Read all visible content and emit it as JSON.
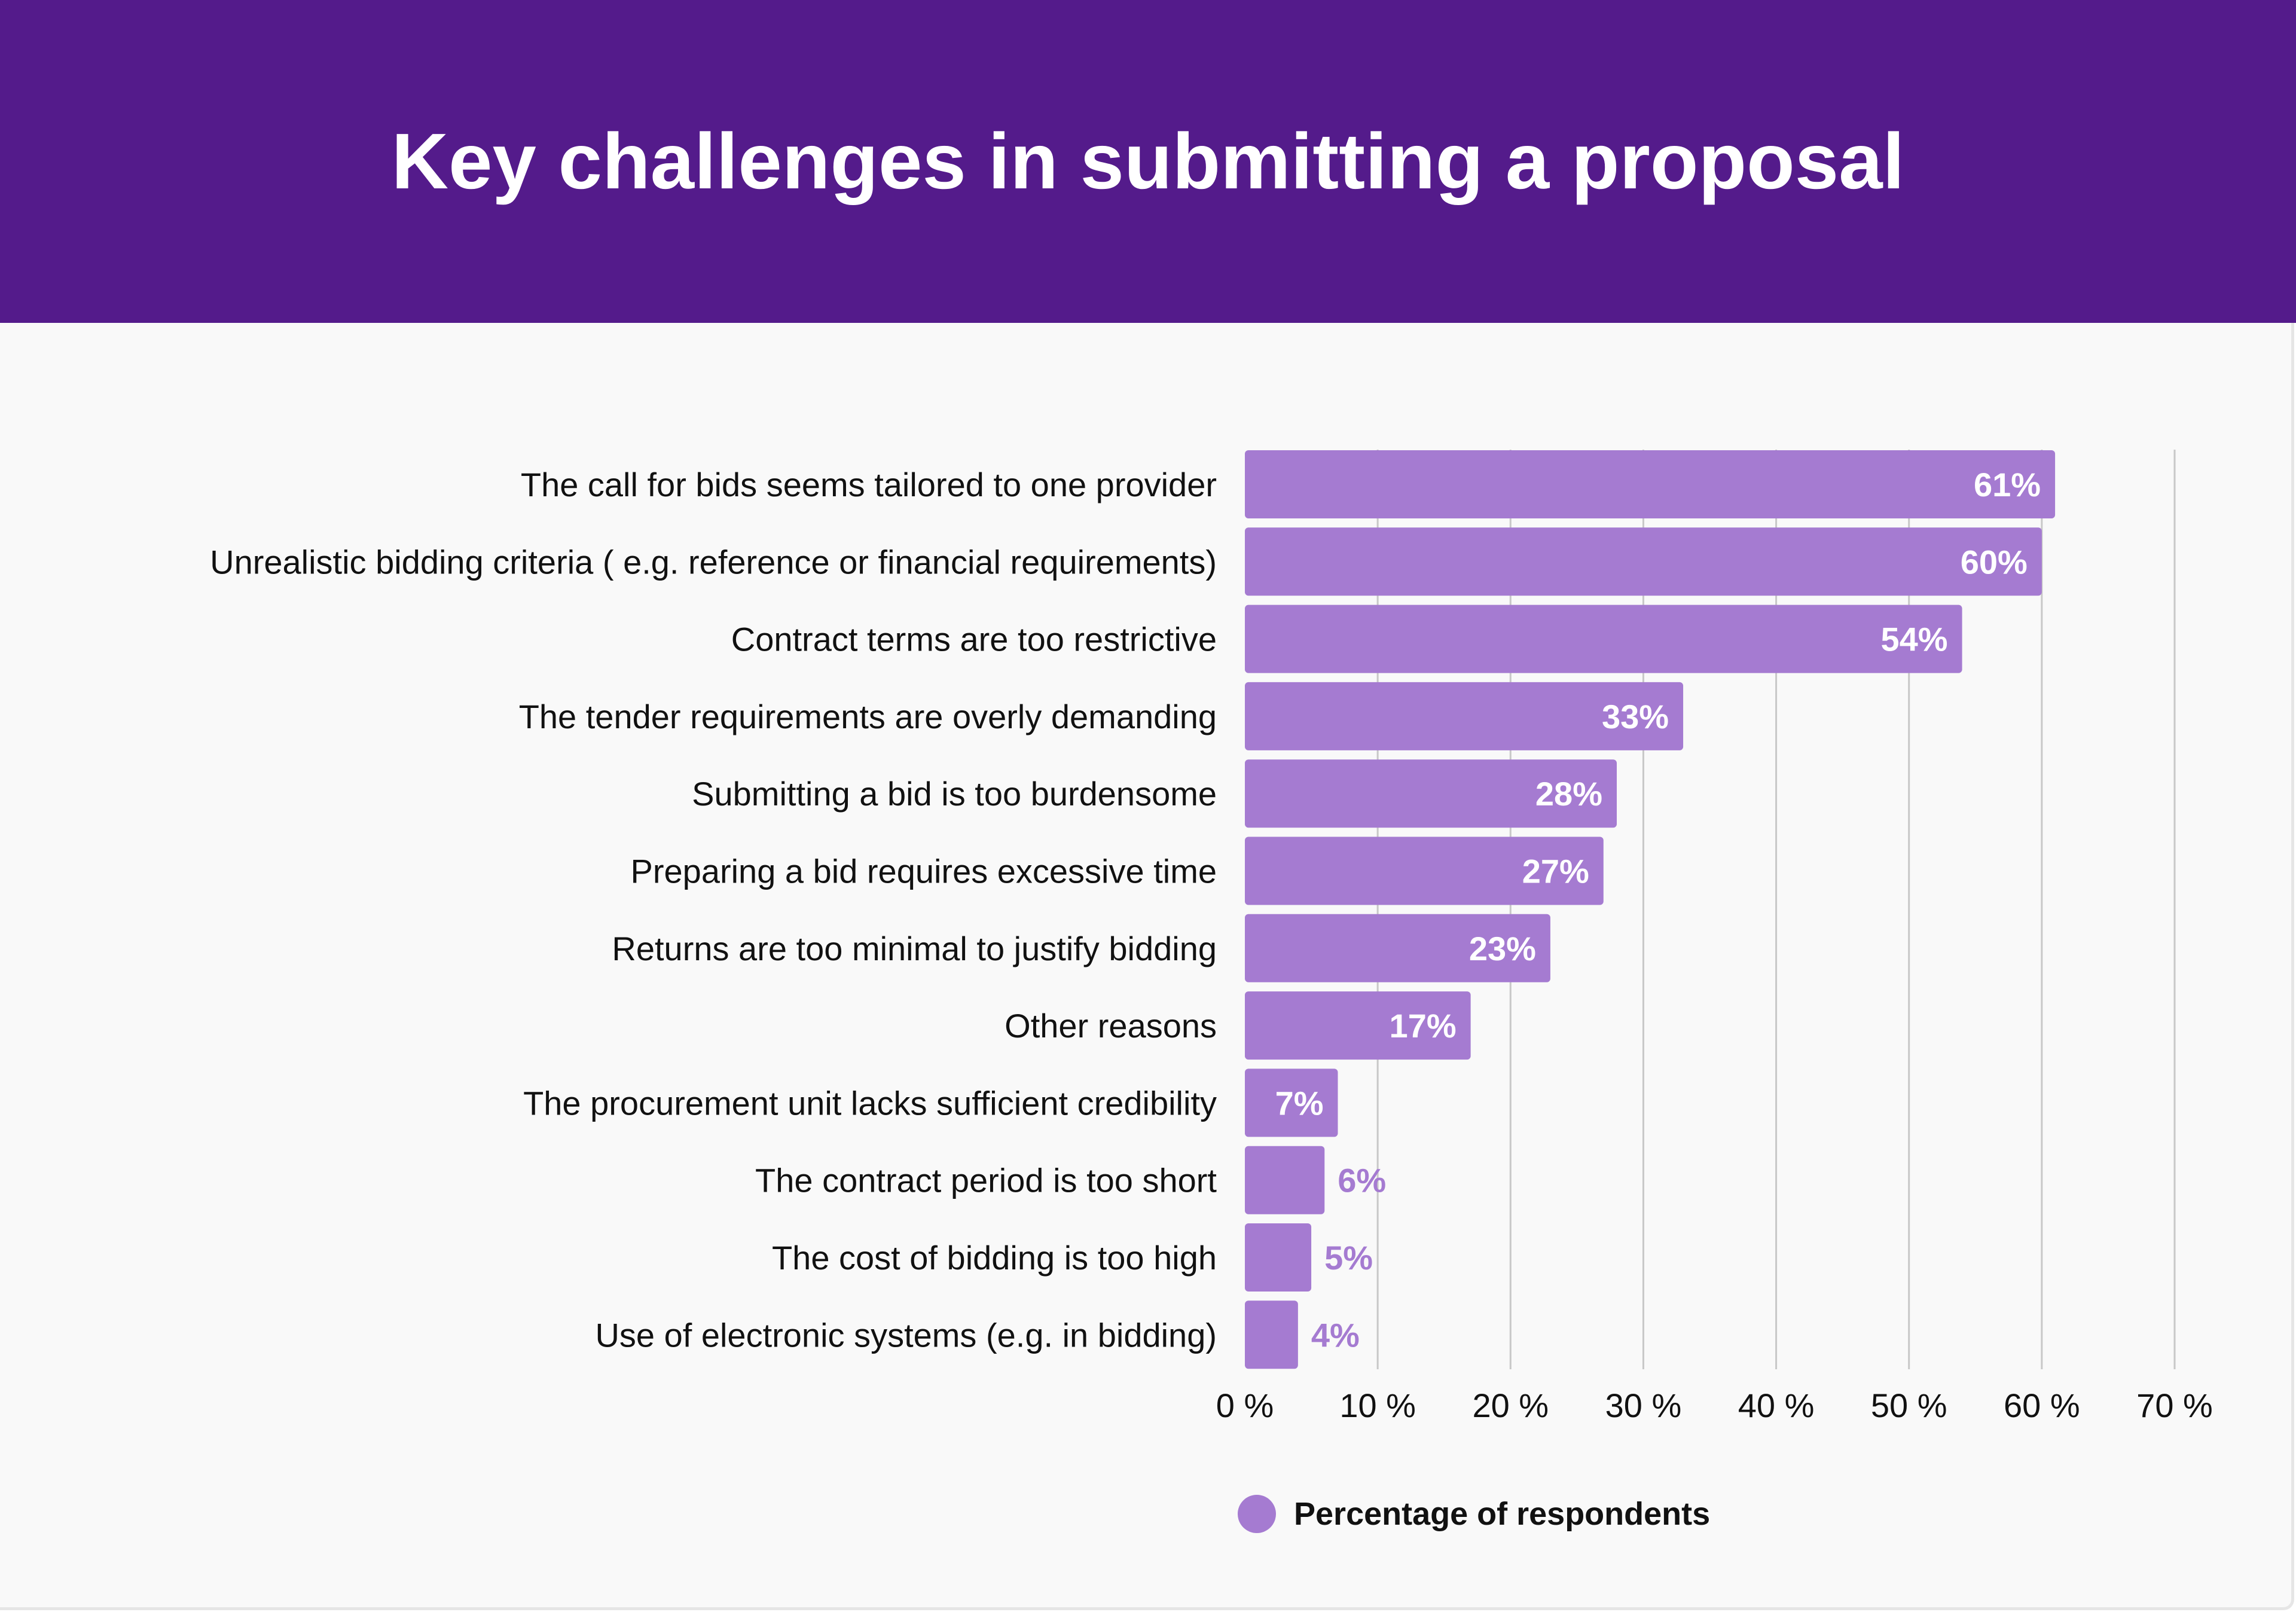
{
  "header": {
    "title": "Key challenges in submitting a proposal"
  },
  "colors": {
    "header_bg": "#541b8b",
    "bar": "#a57bd1",
    "bar_label_inside": "#ffffff",
    "bar_label_outside": "#a57bd1",
    "grid": "#c8c8c8",
    "text": "#111111"
  },
  "legend": {
    "label": "Percentage of respondents",
    "color": "#a57bd1",
    "placement": "bottom"
  },
  "chart_data": {
    "type": "bar",
    "orientation": "horizontal",
    "title": "Key challenges in submitting a proposal",
    "categories": [
      "The call for bids seems tailored to one provider",
      "Unrealistic bidding criteria ( e.g. reference or financial requirements)",
      "Contract terms are too restrictive",
      "The tender requirements are overly demanding",
      "Submitting a bid is too burdensome",
      "Preparing a bid requires excessive time",
      "Returns are too minimal to justify bidding",
      "Other reasons",
      "The procurement unit lacks sufficient credibility",
      "The contract period is too short",
      "The cost of bidding is too high",
      "Use of electronic systems (e.g. in bidding)"
    ],
    "series": [
      {
        "name": "Percentage of respondents",
        "values": [
          61,
          60,
          54,
          33,
          28,
          27,
          23,
          17,
          7,
          6,
          5,
          4
        ]
      }
    ],
    "value_labels": [
      "61%",
      "60%",
      "54%",
      "33%",
      "28%",
      "27%",
      "23%",
      "17%",
      "7%",
      "6%",
      "5%",
      "4%"
    ],
    "xlim": [
      0,
      70
    ],
    "x_ticks": [
      0,
      10,
      20,
      30,
      40,
      50,
      60,
      70
    ],
    "x_tick_labels": [
      "0 %",
      "10 %",
      "20 %",
      "30 %",
      "40 %",
      "50 %",
      "60 %",
      "70 %"
    ],
    "xlabel": "",
    "ylabel": "",
    "grid": true
  }
}
